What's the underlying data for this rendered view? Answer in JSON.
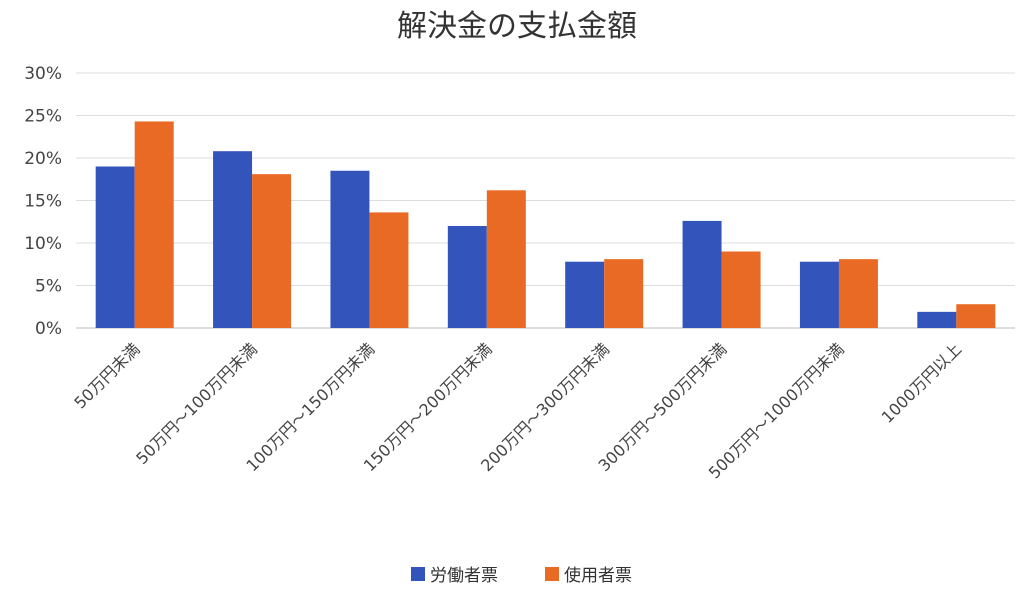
{
  "chart_data": {
    "type": "bar",
    "title": "解決金の支払金額",
    "categories": [
      "50万円未満",
      "50万円～100万円未満",
      "100万円～150万円未満",
      "150万円～200万円未満",
      "200万円～300万円未満",
      "300万円～500万円未満",
      "500万円～1000万円未満",
      "1000万円以上"
    ],
    "series": [
      {
        "name": "労働者票",
        "color": "#3355bb",
        "values": [
          19.0,
          20.8,
          18.5,
          12.0,
          7.8,
          12.6,
          7.8,
          1.9
        ]
      },
      {
        "name": "使用者票",
        "color": "#e86a25",
        "values": [
          24.3,
          18.1,
          13.6,
          16.2,
          8.1,
          9.0,
          8.1,
          2.8
        ]
      }
    ],
    "yticks": [
      "0%",
      "5%",
      "10%",
      "15%",
      "20%",
      "25%",
      "30%"
    ],
    "ylim": [
      0,
      30
    ],
    "grid": true,
    "legend_position": "bottom"
  }
}
